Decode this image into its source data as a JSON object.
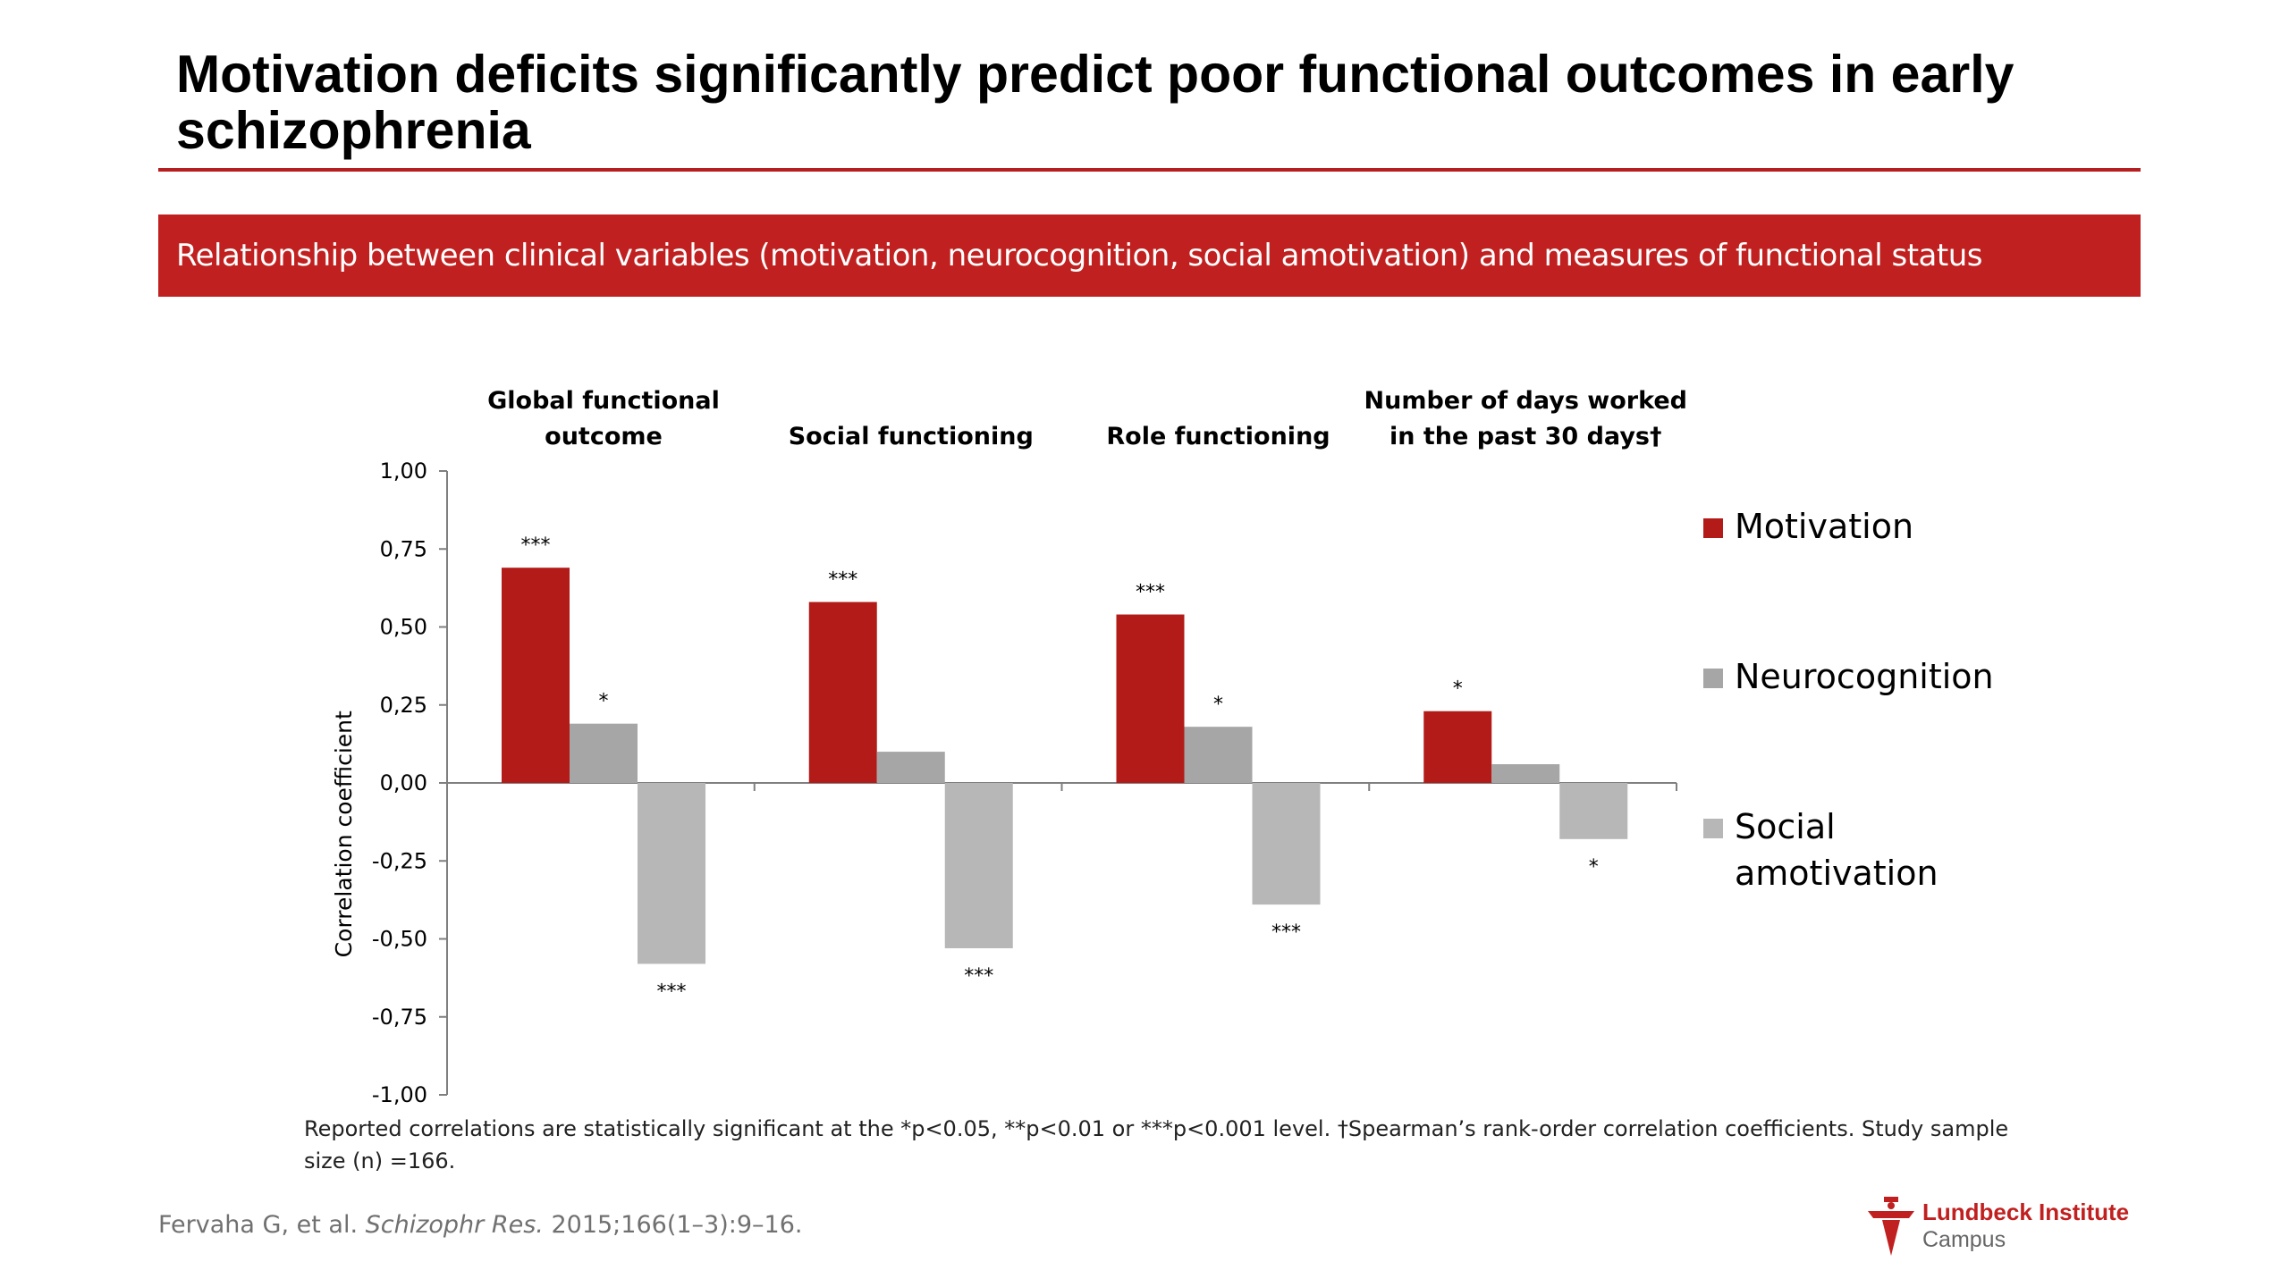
{
  "slide": {
    "title": "Motivation deficits significantly predict poor functional outcomes in early schizophrenia",
    "banner": "Relationship between clinical variables (motivation, neurocognition, social amotivation) and measures of functional status",
    "footnote": "Reported correlations are statistically significant at the *p<0.05, **p<0.01 or ***p<0.001 level. †Spearman’s rank-order correlation coefficients. Study sample size (n) =166.",
    "citation_authors": "Fervaha G, et al.",
    "citation_journal": "Schizophr Res.",
    "citation_details": "2015;166(1–3):9–16."
  },
  "logo": {
    "name": "Lundbeck Institute",
    "sub": "Campus"
  },
  "colors": {
    "accent_red": "#c0201f",
    "motivation": "#b31b19",
    "neurocognition": "#a6a6a6",
    "social_amotivation": "#b7b7b7"
  },
  "chart_data": {
    "type": "bar",
    "title": "",
    "ylabel": "Correlation coefficient",
    "xlabel": "",
    "ylim": [
      -1.0,
      1.0
    ],
    "yticks": [
      "1,00",
      "0,75",
      "0,50",
      "0,25",
      "0,00",
      "-0,25",
      "-0,50",
      "-0,75",
      "-1,00"
    ],
    "ytick_values": [
      1.0,
      0.75,
      0.5,
      0.25,
      0.0,
      -0.25,
      -0.5,
      -0.75,
      -1.0
    ],
    "categories": [
      [
        "Global functional",
        "outcome"
      ],
      [
        "Social functioning"
      ],
      [
        "Role functioning"
      ],
      [
        "Number of days worked",
        "in the past 30 days†"
      ]
    ],
    "series": [
      {
        "name": "Motivation",
        "color": "#b31b19",
        "values": [
          0.69,
          0.58,
          0.54,
          0.23
        ],
        "significance": [
          "***",
          "***",
          "***",
          "*"
        ]
      },
      {
        "name": "Neurocognition",
        "color": "#a6a6a6",
        "values": [
          0.19,
          0.1,
          0.18,
          0.06
        ],
        "significance": [
          "*",
          "",
          "*",
          ""
        ]
      },
      {
        "name": "Social amotivation",
        "legend_lines": [
          "Social",
          "amotivation"
        ],
        "color": "#b7b7b7",
        "values": [
          -0.58,
          -0.53,
          -0.39,
          -0.18
        ],
        "significance": [
          "***",
          "***",
          "***",
          "*"
        ]
      }
    ],
    "grid": false,
    "legend_position": "right"
  }
}
